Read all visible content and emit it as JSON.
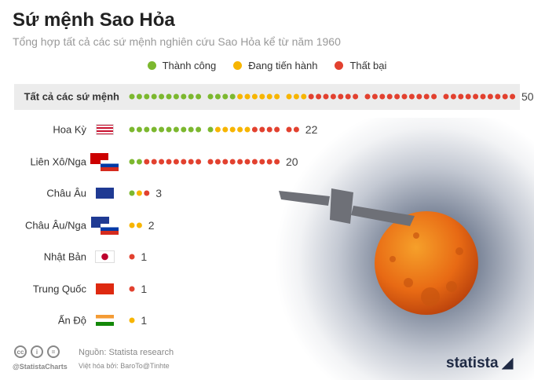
{
  "title": "Sứ mệnh Sao Hỏa",
  "subtitle": "Tổng hợp tất cả các sứ mệnh nghiên cứu Sao Hỏa kể từ năm 1960",
  "colors": {
    "success": "#7cb82f",
    "ongoing": "#f7b500",
    "failed": "#e2412f"
  },
  "chart_data": {
    "type": "dot-plot",
    "legend": [
      {
        "name": "Thành công",
        "key": "success"
      },
      {
        "name": "Đang tiến hành",
        "key": "ongoing"
      },
      {
        "name": "Thất bại",
        "key": "failed"
      }
    ],
    "rows": [
      {
        "label": "Tất cả các sứ mệnh",
        "flag": "none",
        "success": 14,
        "ongoing": 9,
        "failed": 27,
        "total": "50"
      },
      {
        "label": "Hoa Kỳ",
        "flag": "usa",
        "success": 11,
        "ongoing": 5,
        "failed": 6,
        "total": "22"
      },
      {
        "label": "Liên Xô/Nga",
        "flag": "ussr-russia",
        "success": 2,
        "ongoing": 0,
        "failed": 18,
        "total": "20"
      },
      {
        "label": "Châu Âu",
        "flag": "eu",
        "success": 1,
        "ongoing": 1,
        "failed": 1,
        "total": "3"
      },
      {
        "label": "Châu Âu/Nga",
        "flag": "eu-russia",
        "success": 0,
        "ongoing": 2,
        "failed": 0,
        "total": "2"
      },
      {
        "label": "Nhật Bản",
        "flag": "japan",
        "success": 0,
        "ongoing": 0,
        "failed": 1,
        "total": "1"
      },
      {
        "label": "Trung Quốc",
        "flag": "china",
        "success": 0,
        "ongoing": 0,
        "failed": 1,
        "total": "1"
      },
      {
        "label": "Ấn Độ",
        "flag": "india",
        "success": 0,
        "ongoing": 1,
        "failed": 0,
        "total": "1"
      }
    ]
  },
  "footer": {
    "source": "Nguồn: Statista research",
    "localized": "Việt hóa bởi: BaroTo@Tinhte",
    "handle": "@StatistaCharts",
    "logo": "statista",
    "cc_icons": [
      "cc",
      "by",
      "nd"
    ]
  }
}
